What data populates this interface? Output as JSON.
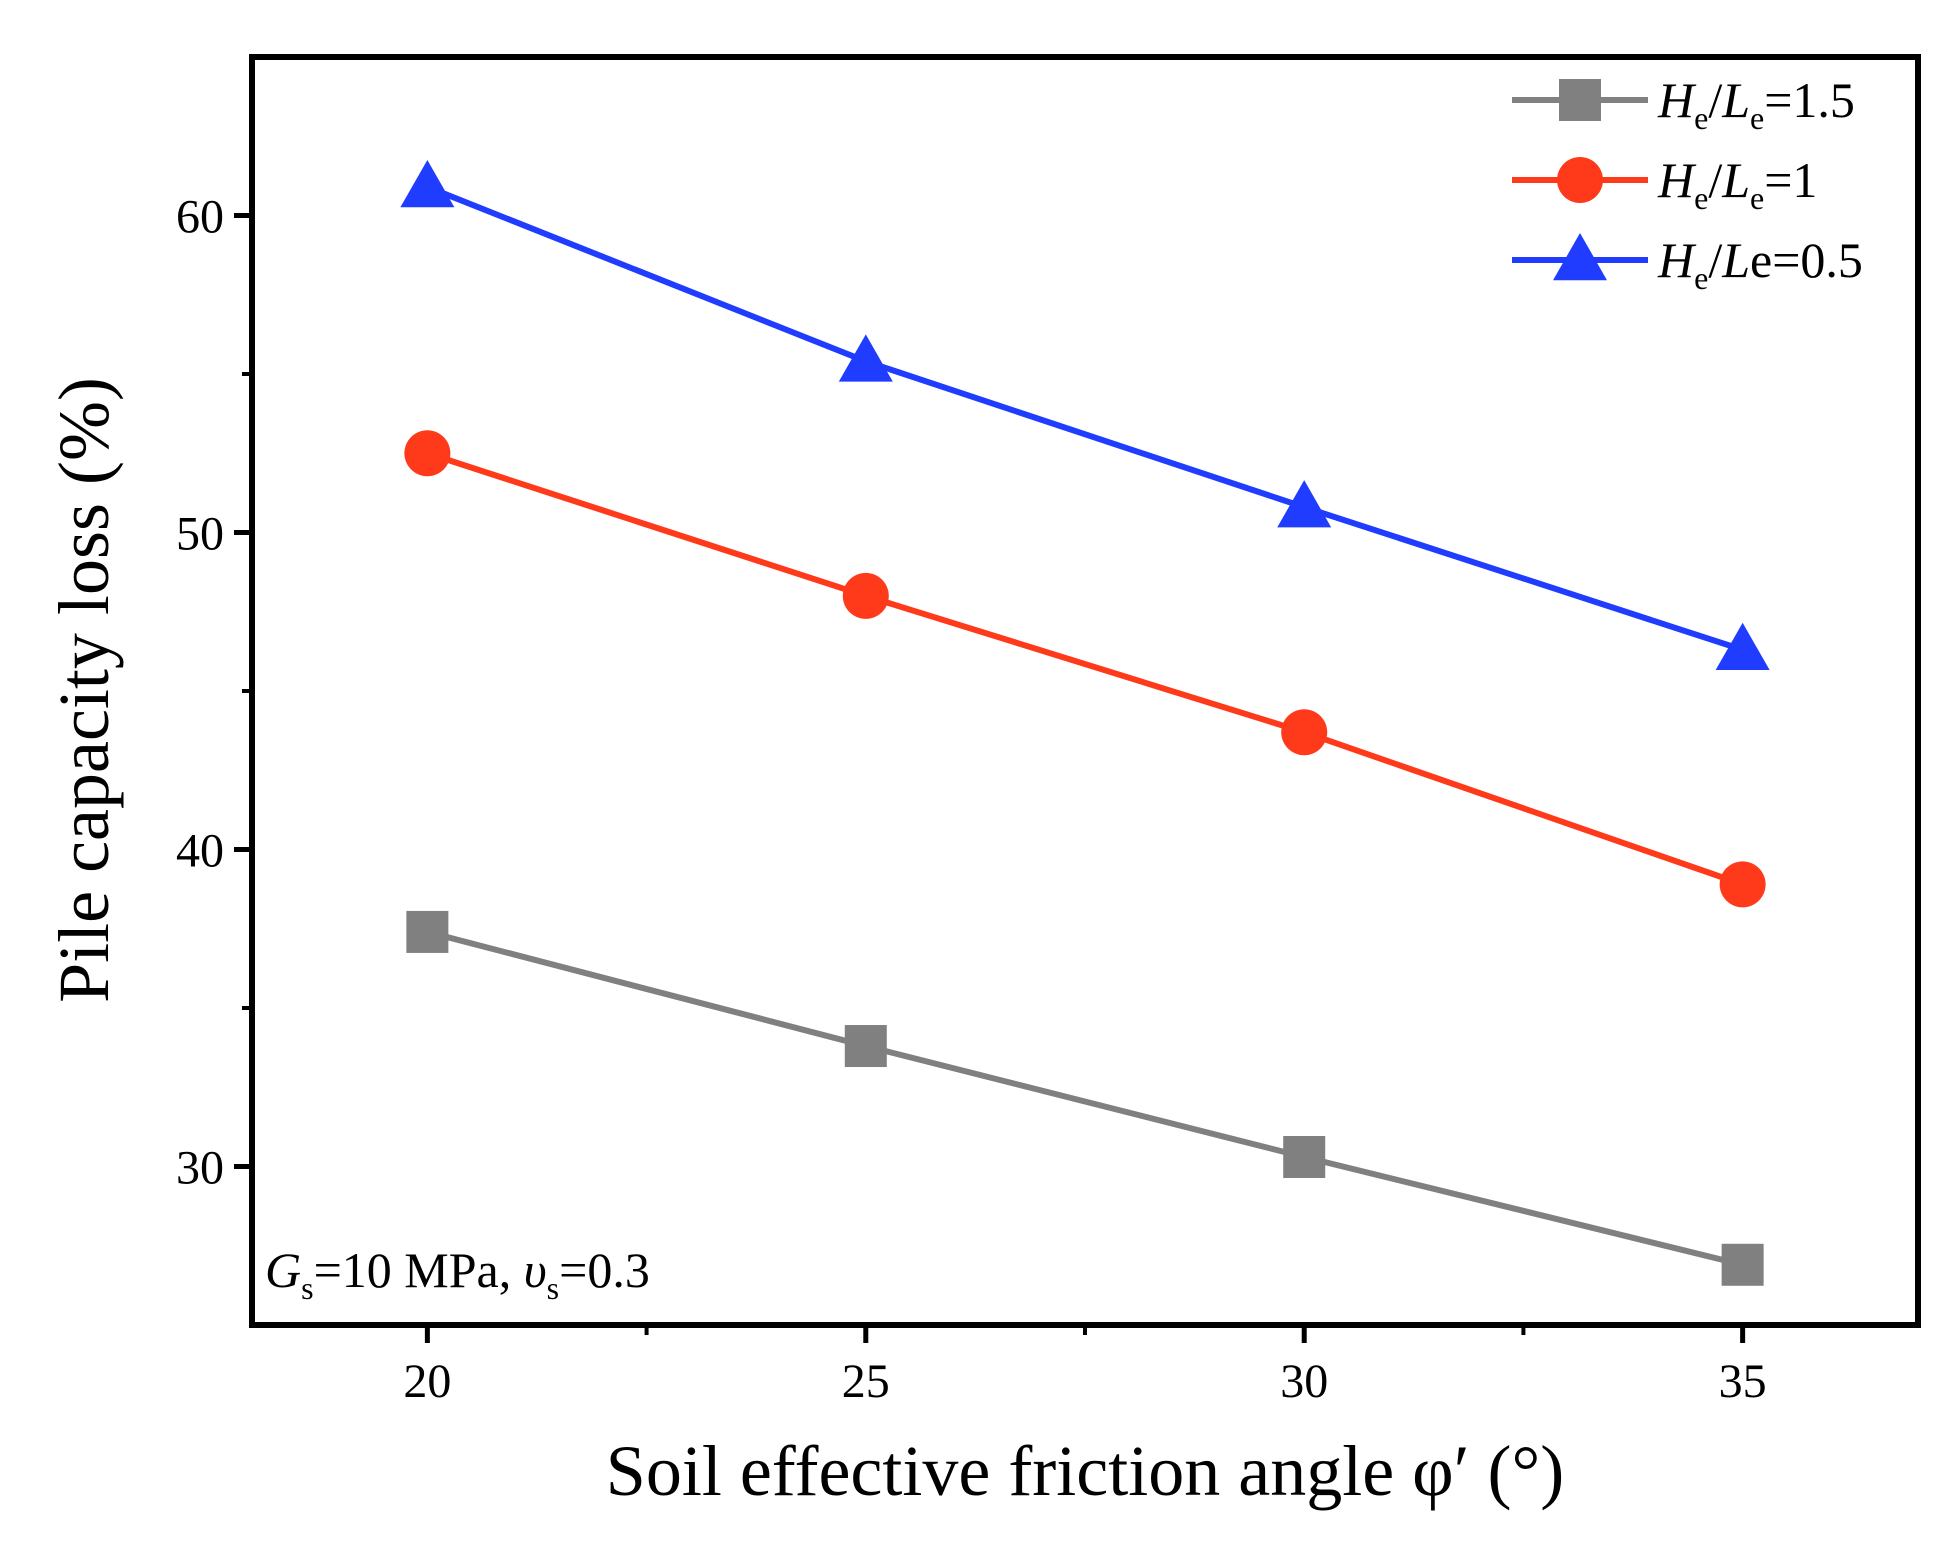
{
  "chart_data": {
    "type": "line",
    "title": "",
    "xlabel": "Soil effective friction angle φ′ (°)",
    "ylabel": "Pile capacity loss (%)",
    "x": [
      20,
      25,
      30,
      35
    ],
    "xlim": [
      18,
      37
    ],
    "ylim": [
      25,
      65
    ],
    "x_ticks": [
      20,
      25,
      30,
      35
    ],
    "x_tick_labels": [
      "20",
      "25",
      "30",
      "35"
    ],
    "y_ticks": [
      30,
      40,
      50,
      60
    ],
    "y_tick_labels": [
      "30",
      "40",
      "50",
      "60"
    ],
    "grid": false,
    "legend_position": "top-right",
    "series": [
      {
        "name": "He/Le=1.5",
        "legend_parts": {
          "a": "H",
          "a_sub": "e",
          "sep": "/",
          "b": "L",
          "b_sub": "e",
          "rest": "=1.5"
        },
        "marker": "square",
        "color": "#808080",
        "values": [
          37.4,
          33.8,
          30.3,
          26.9
        ]
      },
      {
        "name": "He/Le=1",
        "legend_parts": {
          "a": "H",
          "a_sub": "e",
          "sep": "/",
          "b": "L",
          "b_sub": "e",
          "rest": "=1"
        },
        "marker": "circle",
        "color": "#ff3a1a",
        "values": [
          52.5,
          48.0,
          43.7,
          38.9
        ]
      },
      {
        "name": "He/Le=0.5",
        "legend_parts": {
          "a": "H",
          "a_sub": "e",
          "sep": "/",
          "b": "L",
          "b_sub": "",
          "rest": "e=0.5"
        },
        "marker": "triangle",
        "color": "#1f3cff",
        "values": [
          60.9,
          55.4,
          50.8,
          46.3
        ]
      }
    ],
    "annotation": {
      "g": "G",
      "g_sub": "s",
      "g_rest": "=10 MPa, ",
      "nu": "υ",
      "nu_sub": "s",
      "nu_rest": "=0.3"
    }
  }
}
